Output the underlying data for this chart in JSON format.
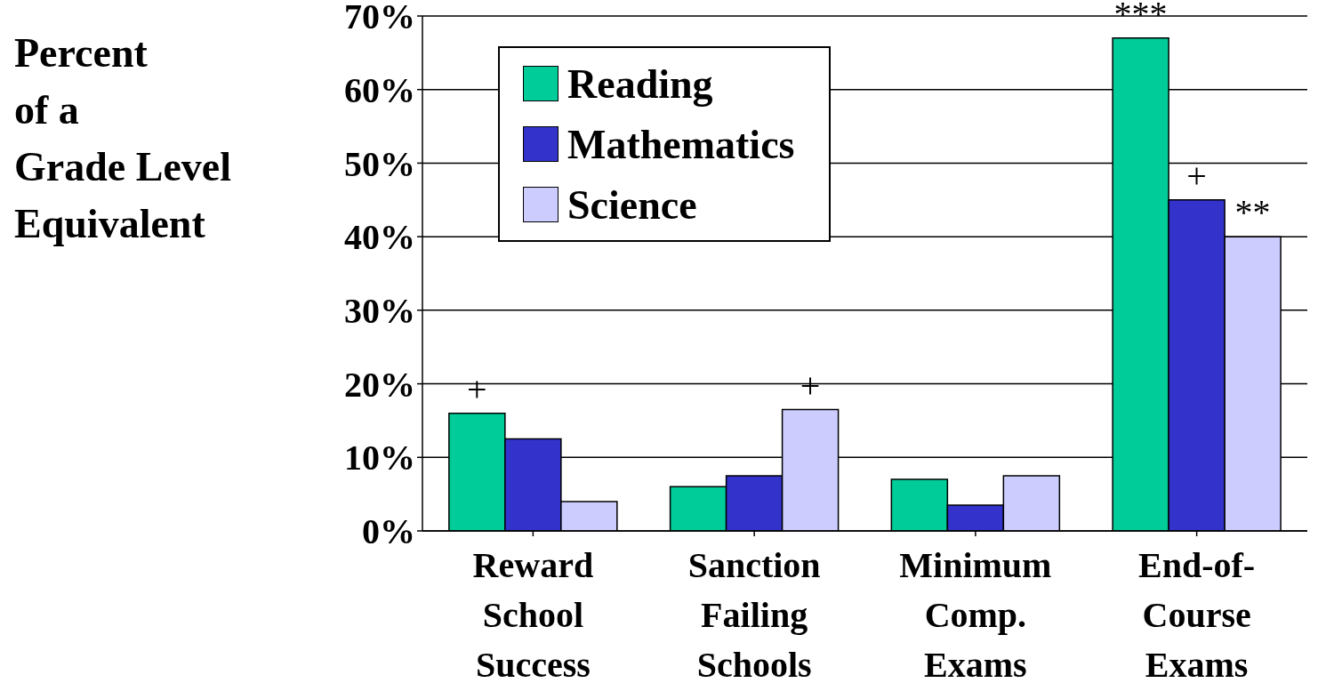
{
  "chart_data": {
    "type": "bar",
    "categories": [
      "Reward\nSchool\nSuccess",
      "Sanction\nFailing\nSchools",
      "Minimum\nComp.\nExams",
      "End-of-\nCourse\nExams"
    ],
    "series": [
      {
        "name": "Reading",
        "color": "#00cc99",
        "values": [
          16,
          6,
          7,
          67
        ]
      },
      {
        "name": "Mathematics",
        "color": "#3333cc",
        "values": [
          12.5,
          7.5,
          3.5,
          45
        ]
      },
      {
        "name": "Science",
        "color": "#ccccff",
        "values": [
          4,
          16.5,
          7.5,
          40
        ]
      }
    ],
    "ylim": [
      0,
      70
    ],
    "yticks": [
      {
        "value": 0,
        "label": "0%"
      },
      {
        "value": 10,
        "label": "10%"
      },
      {
        "value": 20,
        "label": "20%"
      },
      {
        "value": 30,
        "label": "30%"
      },
      {
        "value": 40,
        "label": "40%"
      },
      {
        "value": 50,
        "label": "50%"
      },
      {
        "value": 60,
        "label": "60%"
      },
      {
        "value": 70,
        "label": "70%"
      }
    ],
    "grid": "y",
    "legend": "top left",
    "annotations": [
      "Percent\nof a\nGrade Level\nEquivalent",
      "+",
      "+",
      "***",
      "+",
      "**"
    ]
  }
}
